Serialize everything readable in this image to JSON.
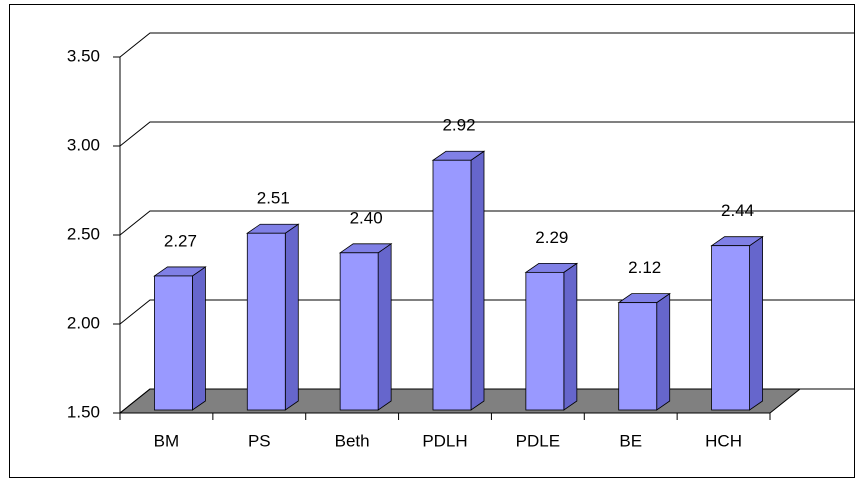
{
  "chart_data": {
    "type": "bar3d",
    "categories": [
      "BM",
      "PS",
      "Beth",
      "PDLH",
      "PDLE",
      "BE",
      "HCH"
    ],
    "values": [
      2.27,
      2.51,
      2.4,
      2.92,
      2.29,
      2.12,
      2.44
    ],
    "value_labels": [
      "2.27",
      "2.51",
      "2.40",
      "2.92",
      "2.29",
      "2.12",
      "2.44"
    ],
    "color": "#9999ff",
    "ylim": [
      1.5,
      3.5
    ],
    "yticks": [
      {
        "value": 1.5,
        "label": "1.50"
      },
      {
        "value": 2,
        "label": "2.00"
      },
      {
        "value": 2.5,
        "label": "2.50"
      },
      {
        "value": 3,
        "label": "3.00"
      },
      {
        "value": 3.5,
        "label": "3.50"
      }
    ],
    "grid": true
  }
}
